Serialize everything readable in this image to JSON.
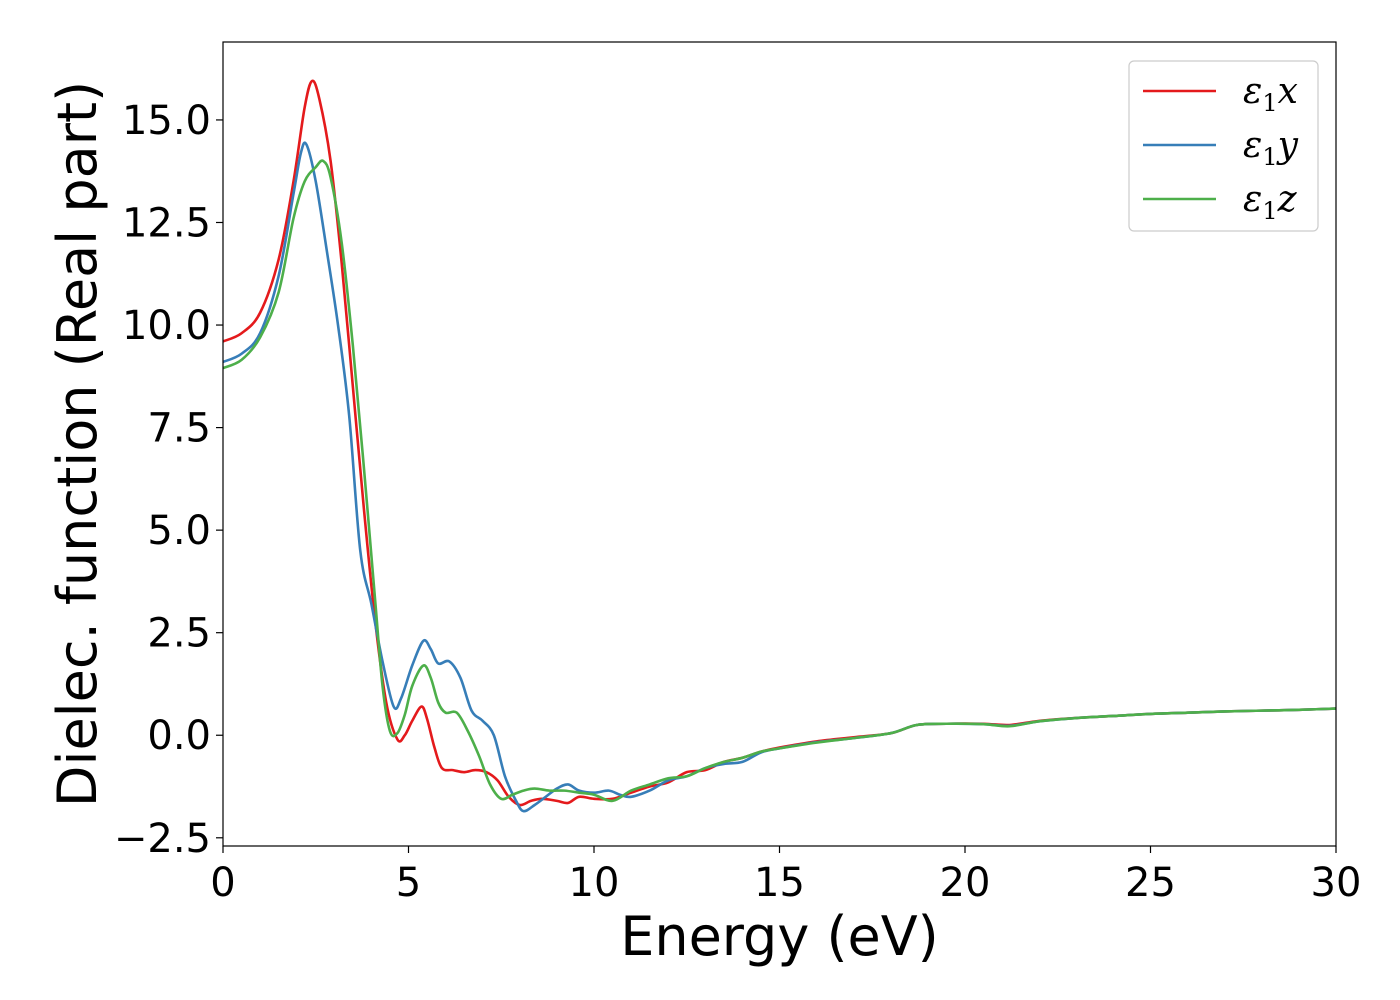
{
  "chart_data": {
    "type": "line",
    "title": "",
    "xlabel": "Energy (eV)",
    "ylabel": "Dielec. function (Real part)",
    "xlim": [
      0,
      30
    ],
    "ylim": [
      -2.7,
      16.9
    ],
    "grid": false,
    "legend_position": "top-right",
    "x_ticks": [
      0,
      5,
      10,
      15,
      20,
      25,
      30
    ],
    "x_tick_labels": [
      "0",
      "5",
      "10",
      "15",
      "20",
      "25",
      "30"
    ],
    "y_ticks": [
      -2.5,
      0.0,
      2.5,
      5.0,
      7.5,
      10.0,
      12.5,
      15.0
    ],
    "y_tick_labels": [
      "−2.5",
      "0.0",
      "2.5",
      "5.0",
      "7.5",
      "10.0",
      "12.5",
      "15.0"
    ],
    "series": [
      {
        "name": "ε1x",
        "legend_base": "ε",
        "legend_sub": "1",
        "legend_suffix": "x",
        "color": "#e41a1c",
        "points": [
          [
            0,
            9.6
          ],
          [
            0.5,
            9.8
          ],
          [
            1.0,
            10.3
          ],
          [
            1.5,
            11.6
          ],
          [
            1.9,
            13.5
          ],
          [
            2.2,
            15.3
          ],
          [
            2.4,
            15.95
          ],
          [
            2.6,
            15.5
          ],
          [
            2.9,
            14.0
          ],
          [
            3.2,
            11.5
          ],
          [
            3.5,
            8.5
          ],
          [
            3.8,
            5.5
          ],
          [
            4.1,
            2.8
          ],
          [
            4.4,
            0.8
          ],
          [
            4.7,
            -0.1
          ],
          [
            4.9,
            0.0
          ],
          [
            5.1,
            0.35
          ],
          [
            5.35,
            0.7
          ],
          [
            5.5,
            0.4
          ],
          [
            5.7,
            -0.3
          ],
          [
            5.9,
            -0.8
          ],
          [
            6.2,
            -0.85
          ],
          [
            6.5,
            -0.9
          ],
          [
            6.8,
            -0.85
          ],
          [
            7.1,
            -0.9
          ],
          [
            7.4,
            -1.1
          ],
          [
            7.7,
            -1.5
          ],
          [
            8.0,
            -1.7
          ],
          [
            8.3,
            -1.6
          ],
          [
            8.6,
            -1.55
          ],
          [
            9.0,
            -1.6
          ],
          [
            9.3,
            -1.65
          ],
          [
            9.6,
            -1.5
          ],
          [
            10.0,
            -1.55
          ],
          [
            10.5,
            -1.55
          ],
          [
            11.0,
            -1.4
          ],
          [
            11.5,
            -1.25
          ],
          [
            12.0,
            -1.15
          ],
          [
            12.5,
            -0.9
          ],
          [
            13.0,
            -0.85
          ],
          [
            13.5,
            -0.65
          ],
          [
            14.0,
            -0.55
          ],
          [
            14.5,
            -0.4
          ],
          [
            15.0,
            -0.3
          ],
          [
            16.0,
            -0.15
          ],
          [
            17.0,
            -0.05
          ],
          [
            18.0,
            0.05
          ],
          [
            18.7,
            0.25
          ],
          [
            19.5,
            0.28
          ],
          [
            20.5,
            0.28
          ],
          [
            21.2,
            0.25
          ],
          [
            22.0,
            0.35
          ],
          [
            23.0,
            0.42
          ],
          [
            24.0,
            0.47
          ],
          [
            25.0,
            0.52
          ],
          [
            26.0,
            0.55
          ],
          [
            27.0,
            0.58
          ],
          [
            28.0,
            0.6
          ],
          [
            29.0,
            0.62
          ],
          [
            30.0,
            0.65
          ]
        ]
      },
      {
        "name": "ε1y",
        "legend_base": "ε",
        "legend_sub": "1",
        "legend_suffix": "y",
        "color": "#377eb8",
        "points": [
          [
            0,
            9.1
          ],
          [
            0.5,
            9.3
          ],
          [
            1.0,
            9.8
          ],
          [
            1.5,
            11.2
          ],
          [
            1.9,
            13.2
          ],
          [
            2.1,
            14.2
          ],
          [
            2.25,
            14.4
          ],
          [
            2.5,
            13.5
          ],
          [
            2.8,
            11.8
          ],
          [
            3.1,
            10.0
          ],
          [
            3.4,
            7.8
          ],
          [
            3.7,
            4.5
          ],
          [
            4.0,
            3.2
          ],
          [
            4.3,
            1.8
          ],
          [
            4.6,
            0.7
          ],
          [
            4.8,
            0.9
          ],
          [
            5.1,
            1.7
          ],
          [
            5.4,
            2.3
          ],
          [
            5.6,
            2.1
          ],
          [
            5.8,
            1.75
          ],
          [
            6.1,
            1.8
          ],
          [
            6.4,
            1.4
          ],
          [
            6.7,
            0.6
          ],
          [
            7.0,
            0.35
          ],
          [
            7.3,
            0.0
          ],
          [
            7.6,
            -1.0
          ],
          [
            7.9,
            -1.6
          ],
          [
            8.1,
            -1.85
          ],
          [
            8.4,
            -1.7
          ],
          [
            8.7,
            -1.5
          ],
          [
            9.0,
            -1.3
          ],
          [
            9.3,
            -1.2
          ],
          [
            9.6,
            -1.35
          ],
          [
            10.0,
            -1.4
          ],
          [
            10.4,
            -1.35
          ],
          [
            10.7,
            -1.45
          ],
          [
            11.0,
            -1.5
          ],
          [
            11.5,
            -1.35
          ],
          [
            12.0,
            -1.1
          ],
          [
            12.5,
            -1.0
          ],
          [
            13.0,
            -0.8
          ],
          [
            13.5,
            -0.7
          ],
          [
            14.0,
            -0.65
          ],
          [
            14.5,
            -0.42
          ],
          [
            15.0,
            -0.32
          ],
          [
            16.0,
            -0.17
          ],
          [
            17.0,
            -0.07
          ],
          [
            18.0,
            0.05
          ],
          [
            18.7,
            0.25
          ],
          [
            19.5,
            0.28
          ],
          [
            20.5,
            0.27
          ],
          [
            21.2,
            0.23
          ],
          [
            22.0,
            0.34
          ],
          [
            23.0,
            0.42
          ],
          [
            24.0,
            0.47
          ],
          [
            25.0,
            0.52
          ],
          [
            26.0,
            0.55
          ],
          [
            27.0,
            0.58
          ],
          [
            28.0,
            0.6
          ],
          [
            29.0,
            0.62
          ],
          [
            30.0,
            0.65
          ]
        ]
      },
      {
        "name": "ε1z",
        "legend_base": "ε",
        "legend_sub": "1",
        "legend_suffix": "z",
        "color": "#4daf4a",
        "points": [
          [
            0,
            8.95
          ],
          [
            0.5,
            9.15
          ],
          [
            1.0,
            9.7
          ],
          [
            1.5,
            10.8
          ],
          [
            1.9,
            12.6
          ],
          [
            2.2,
            13.5
          ],
          [
            2.5,
            13.85
          ],
          [
            2.7,
            14.0
          ],
          [
            2.9,
            13.6
          ],
          [
            3.2,
            12.0
          ],
          [
            3.5,
            9.5
          ],
          [
            3.8,
            6.5
          ],
          [
            4.1,
            3.3
          ],
          [
            4.3,
            1.2
          ],
          [
            4.5,
            0.1
          ],
          [
            4.7,
            0.05
          ],
          [
            4.9,
            0.5
          ],
          [
            5.1,
            1.2
          ],
          [
            5.4,
            1.7
          ],
          [
            5.6,
            1.4
          ],
          [
            5.8,
            0.8
          ],
          [
            6.0,
            0.55
          ],
          [
            6.3,
            0.55
          ],
          [
            6.6,
            0.1
          ],
          [
            6.9,
            -0.5
          ],
          [
            7.2,
            -1.2
          ],
          [
            7.5,
            -1.55
          ],
          [
            7.8,
            -1.45
          ],
          [
            8.1,
            -1.35
          ],
          [
            8.4,
            -1.3
          ],
          [
            8.8,
            -1.35
          ],
          [
            9.2,
            -1.35
          ],
          [
            9.6,
            -1.4
          ],
          [
            10.0,
            -1.45
          ],
          [
            10.5,
            -1.6
          ],
          [
            11.0,
            -1.35
          ],
          [
            11.5,
            -1.2
          ],
          [
            12.0,
            -1.05
          ],
          [
            12.5,
            -1.0
          ],
          [
            13.0,
            -0.8
          ],
          [
            13.5,
            -0.65
          ],
          [
            14.0,
            -0.55
          ],
          [
            14.5,
            -0.4
          ],
          [
            15.0,
            -0.32
          ],
          [
            16.0,
            -0.18
          ],
          [
            17.0,
            -0.07
          ],
          [
            18.0,
            0.05
          ],
          [
            18.7,
            0.25
          ],
          [
            19.5,
            0.28
          ],
          [
            20.5,
            0.27
          ],
          [
            21.2,
            0.22
          ],
          [
            22.0,
            0.34
          ],
          [
            23.0,
            0.42
          ],
          [
            24.0,
            0.47
          ],
          [
            25.0,
            0.52
          ],
          [
            26.0,
            0.55
          ],
          [
            27.0,
            0.58
          ],
          [
            28.0,
            0.6
          ],
          [
            29.0,
            0.62
          ],
          [
            30.0,
            0.65
          ]
        ]
      }
    ]
  }
}
